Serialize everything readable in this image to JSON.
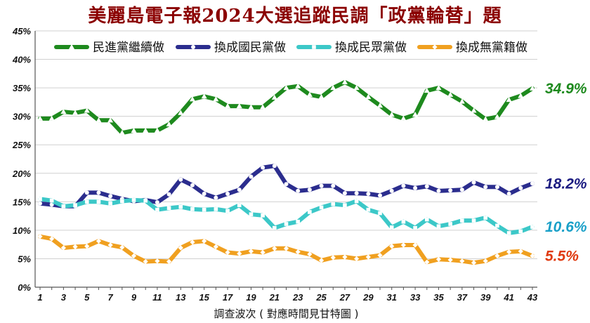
{
  "title": "美麗島電子報2024大選追蹤民調「政黨輪替」題",
  "chart_data": {
    "type": "line",
    "title": "美麗島電子報2024大選追蹤民調「政黨輪替」題",
    "xlabel": "調查波次 ( 對應時間見甘特圖 )",
    "ylabel": "",
    "x": [
      1,
      2,
      3,
      4,
      5,
      6,
      7,
      8,
      9,
      10,
      11,
      12,
      13,
      14,
      15,
      16,
      17,
      18,
      19,
      20,
      21,
      22,
      23,
      24,
      25,
      26,
      27,
      28,
      29,
      30,
      31,
      32,
      33,
      34,
      35,
      36,
      37,
      38,
      39,
      40,
      41,
      42,
      43
    ],
    "x_tick_labels": [
      "1",
      "3",
      "5",
      "7",
      "9",
      "11",
      "13",
      "15",
      "17",
      "19",
      "21",
      "23",
      "25",
      "27",
      "29",
      "31",
      "33",
      "35",
      "37",
      "39",
      "41",
      "43"
    ],
    "ylim": [
      0,
      45
    ],
    "y_tick_labels": [
      "0%",
      "5%",
      "10%",
      "15%",
      "20%",
      "25%",
      "30%",
      "35%",
      "40%",
      "45%"
    ],
    "grid": true,
    "legend_position": "top",
    "series": [
      {
        "name": "民進黨繼續做",
        "color": "#1e8a1e",
        "marker": "triangle",
        "end_label": "34.9%",
        "label_color": "#1e8a1e",
        "values": [
          29.6,
          29.6,
          30.8,
          30.6,
          31.0,
          29.3,
          29.3,
          27.1,
          27.5,
          27.5,
          27.5,
          28.6,
          30.6,
          33.0,
          33.5,
          33.0,
          31.8,
          31.8,
          31.6,
          31.6,
          33.3,
          35.0,
          35.3,
          33.8,
          33.4,
          35.0,
          36.0,
          35.0,
          33.4,
          31.9,
          30.3,
          29.6,
          30.3,
          34.5,
          35.0,
          33.8,
          32.6,
          31.0,
          29.5,
          29.9,
          32.9,
          33.6,
          34.9
        ]
      },
      {
        "name": "換成國民黨做",
        "color": "#2b2d8e",
        "marker": "circle",
        "end_label": "18.2%",
        "label_color": "#1a1a80",
        "values": [
          14.7,
          14.5,
          14.2,
          14.2,
          16.6,
          16.6,
          16.0,
          15.5,
          15.1,
          15.3,
          14.9,
          16.3,
          18.9,
          17.9,
          16.4,
          15.7,
          16.4,
          17.1,
          19.4,
          21.0,
          21.3,
          18.1,
          16.9,
          17.1,
          17.8,
          17.8,
          16.5,
          16.5,
          16.4,
          16.1,
          16.9,
          17.8,
          17.4,
          17.7,
          16.9,
          17.0,
          17.1,
          18.4,
          17.6,
          17.6,
          16.4,
          17.4,
          18.2
        ]
      },
      {
        "name": "換成民眾黨做",
        "color": "#3cc8c8",
        "marker": "square",
        "end_label": "10.6%",
        "label_color": "#1aa0c8",
        "values": [
          15.5,
          15.2,
          14.2,
          14.4,
          15.0,
          15.0,
          14.7,
          15.1,
          15.3,
          15.2,
          13.6,
          13.9,
          14.1,
          13.7,
          13.6,
          13.7,
          13.4,
          14.4,
          12.8,
          12.6,
          10.4,
          11.1,
          11.5,
          13.2,
          14.0,
          14.6,
          14.4,
          15.1,
          13.6,
          13.0,
          10.5,
          11.5,
          10.4,
          11.9,
          10.7,
          11.1,
          11.7,
          11.7,
          12.2,
          10.8,
          9.5,
          9.8,
          10.6
        ]
      },
      {
        "name": "換成無黨籍做",
        "color": "#f0a020",
        "marker": "diamond",
        "end_label": "5.5%",
        "label_color": "#e03a10",
        "values": [
          8.9,
          8.5,
          6.9,
          7.1,
          7.2,
          8.1,
          7.4,
          7.0,
          5.5,
          4.5,
          4.6,
          4.5,
          6.9,
          7.9,
          8.1,
          7.1,
          6.1,
          5.9,
          6.3,
          6.1,
          6.8,
          6.8,
          6.2,
          5.8,
          4.7,
          5.2,
          5.3,
          5.0,
          5.3,
          5.6,
          7.2,
          7.4,
          7.4,
          4.4,
          4.9,
          4.8,
          4.6,
          4.3,
          4.6,
          5.5,
          6.2,
          6.3,
          5.5
        ]
      }
    ]
  }
}
